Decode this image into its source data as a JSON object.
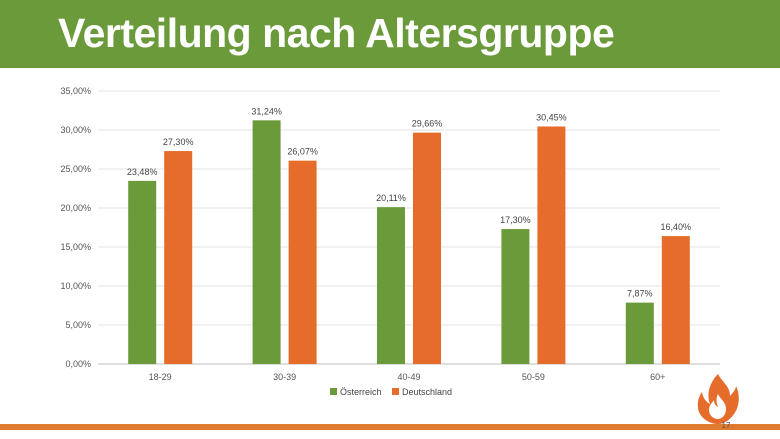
{
  "slide": {
    "title": "Verteilung nach Altersgruppe",
    "page_number": "17"
  },
  "icons": {
    "logo": "flame-icon"
  },
  "colors": {
    "header_background": "#6a9a3a",
    "accent_orange": "#e07a2e",
    "series_oesterreich": "#6a9a3a",
    "series_deutschland": "#e56c2a"
  },
  "chart_data": {
    "type": "bar",
    "categories": [
      "18-29",
      "30-39",
      "40-49",
      "50-59",
      "60+"
    ],
    "series": [
      {
        "name": "Österreich",
        "values": [
          23.48,
          31.24,
          20.11,
          17.3,
          7.87
        ],
        "labels": [
          "23,48%",
          "31,24%",
          "20,11%",
          "17,30%",
          "7,87%"
        ]
      },
      {
        "name": "Deutschland",
        "values": [
          27.3,
          26.07,
          29.66,
          30.45,
          16.4
        ],
        "labels": [
          "27,30%",
          "26,07%",
          "29,66%",
          "30,45%",
          "16,40%"
        ]
      }
    ],
    "ylim": [
      0,
      35
    ],
    "yticks": [
      "0,00%",
      "5,00%",
      "10,00%",
      "15,00%",
      "20,00%",
      "25,00%",
      "30,00%",
      "35,00%"
    ],
    "grid": true,
    "legend_position": "bottom"
  }
}
